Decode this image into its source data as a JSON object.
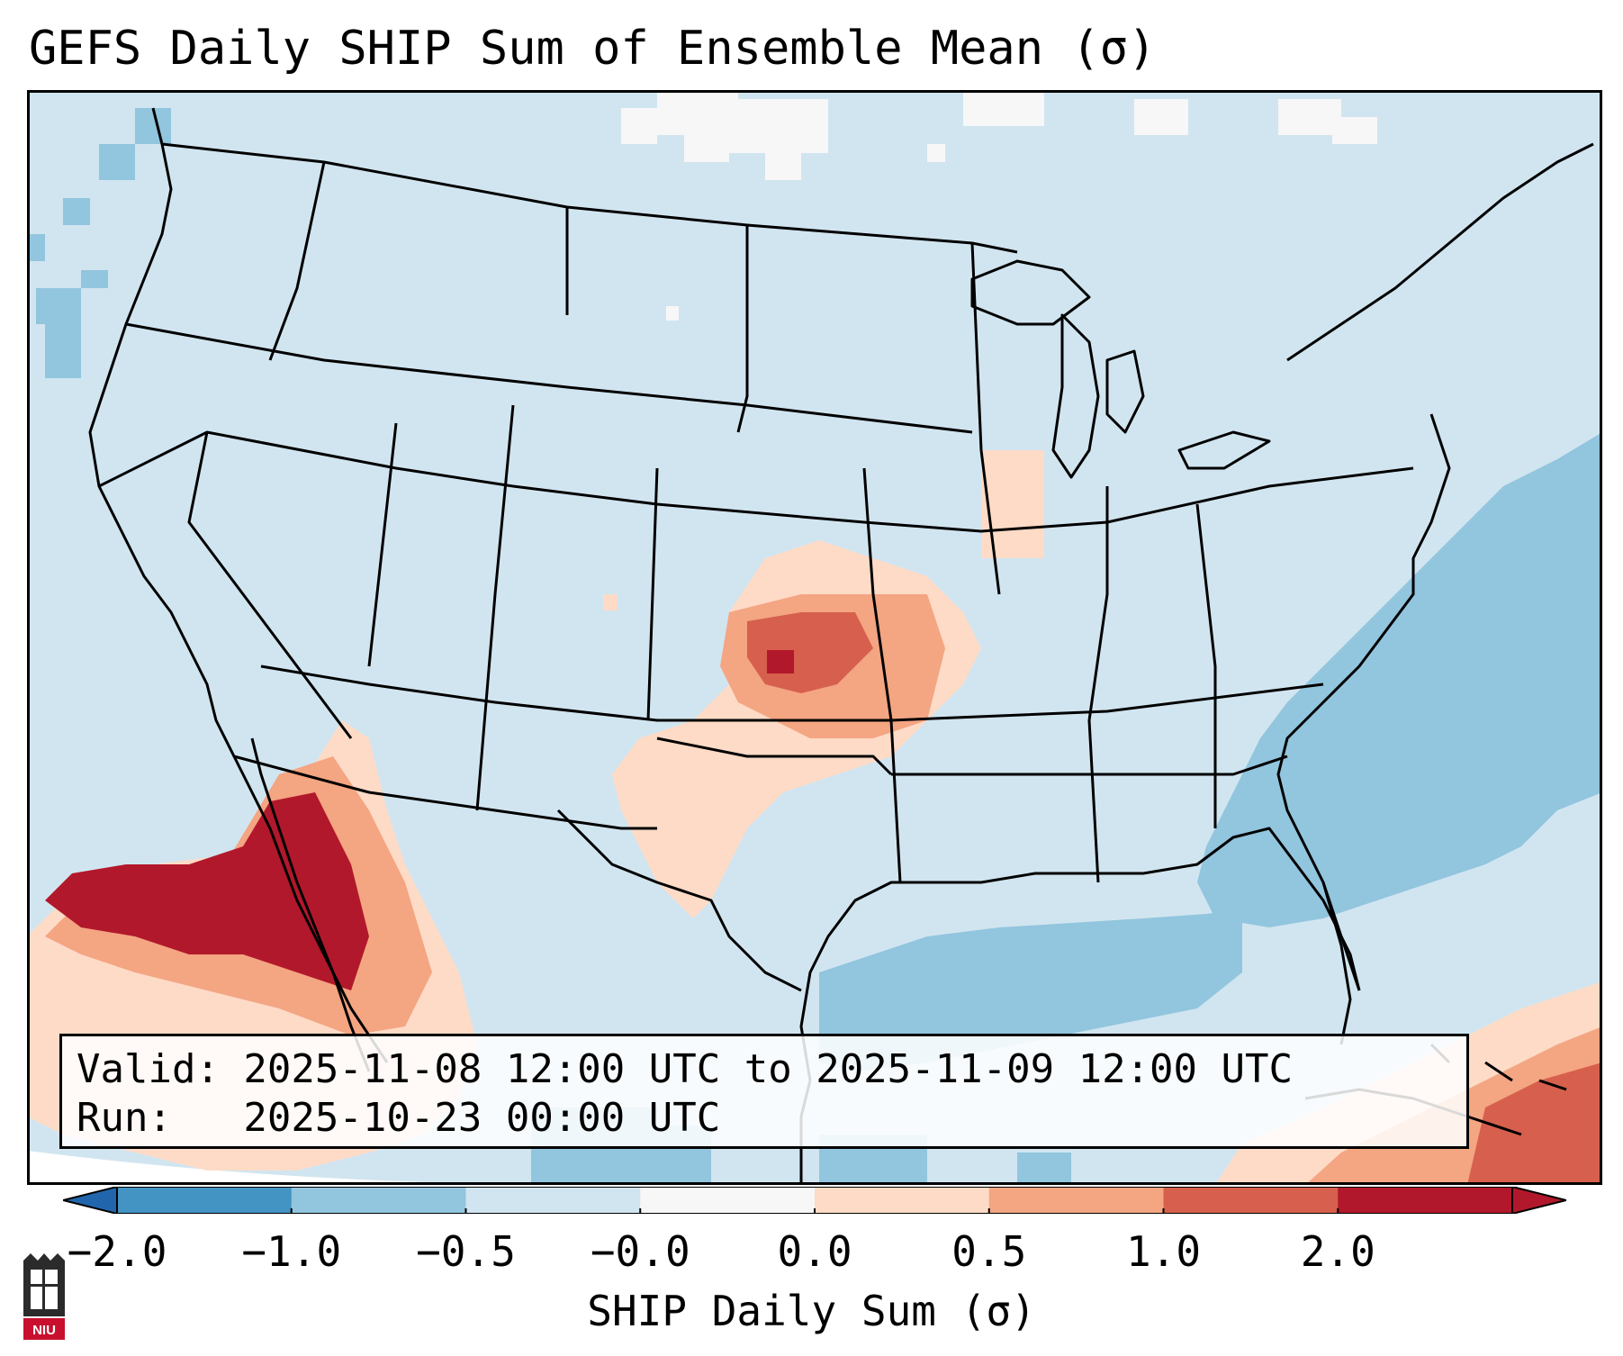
{
  "title": "GEFS Daily SHIP Sum of Ensemble Mean (σ)",
  "info_box": {
    "valid": "Valid: 2025-11-08 12:00 UTC to 2025-11-09 12:00 UTC",
    "run": "Run:   2025-10-23 00:00 UTC"
  },
  "colorbar": {
    "label": "SHIP Daily Sum (σ)",
    "ticks": [
      "−2.0",
      "−1.0",
      "−0.5",
      "−0.0",
      "0.0",
      "0.5",
      "1.0",
      "2.0"
    ],
    "segment_colors": [
      "#4393c3",
      "#92c5de",
      "#d1e5f0",
      "#f7f7f7",
      "#fddbc7",
      "#f4a582",
      "#d6604d",
      "#b2182b"
    ],
    "extend_colors": {
      "low": "#2166ac",
      "high": "#b2182b"
    }
  },
  "map": {
    "background_color": "#d1e5f0",
    "outer_color": "#ffffff",
    "anomaly_regions": [
      {
        "region": "Northern Rockies scattered",
        "category": "white"
      },
      {
        "region": "Southern Plains (Oklahoma / Kansas / Texas)",
        "category": "positive"
      },
      {
        "region": "Gulf of California / Baja California",
        "category": "positive"
      },
      {
        "region": "Western Atlantic off Southeast coast",
        "category": "negative"
      },
      {
        "region": "Gulf of Mexico",
        "category": "negative"
      },
      {
        "region": "Caribbean / Bahamas",
        "category": "positive"
      }
    ]
  },
  "logo": {
    "text": "NIU"
  }
}
